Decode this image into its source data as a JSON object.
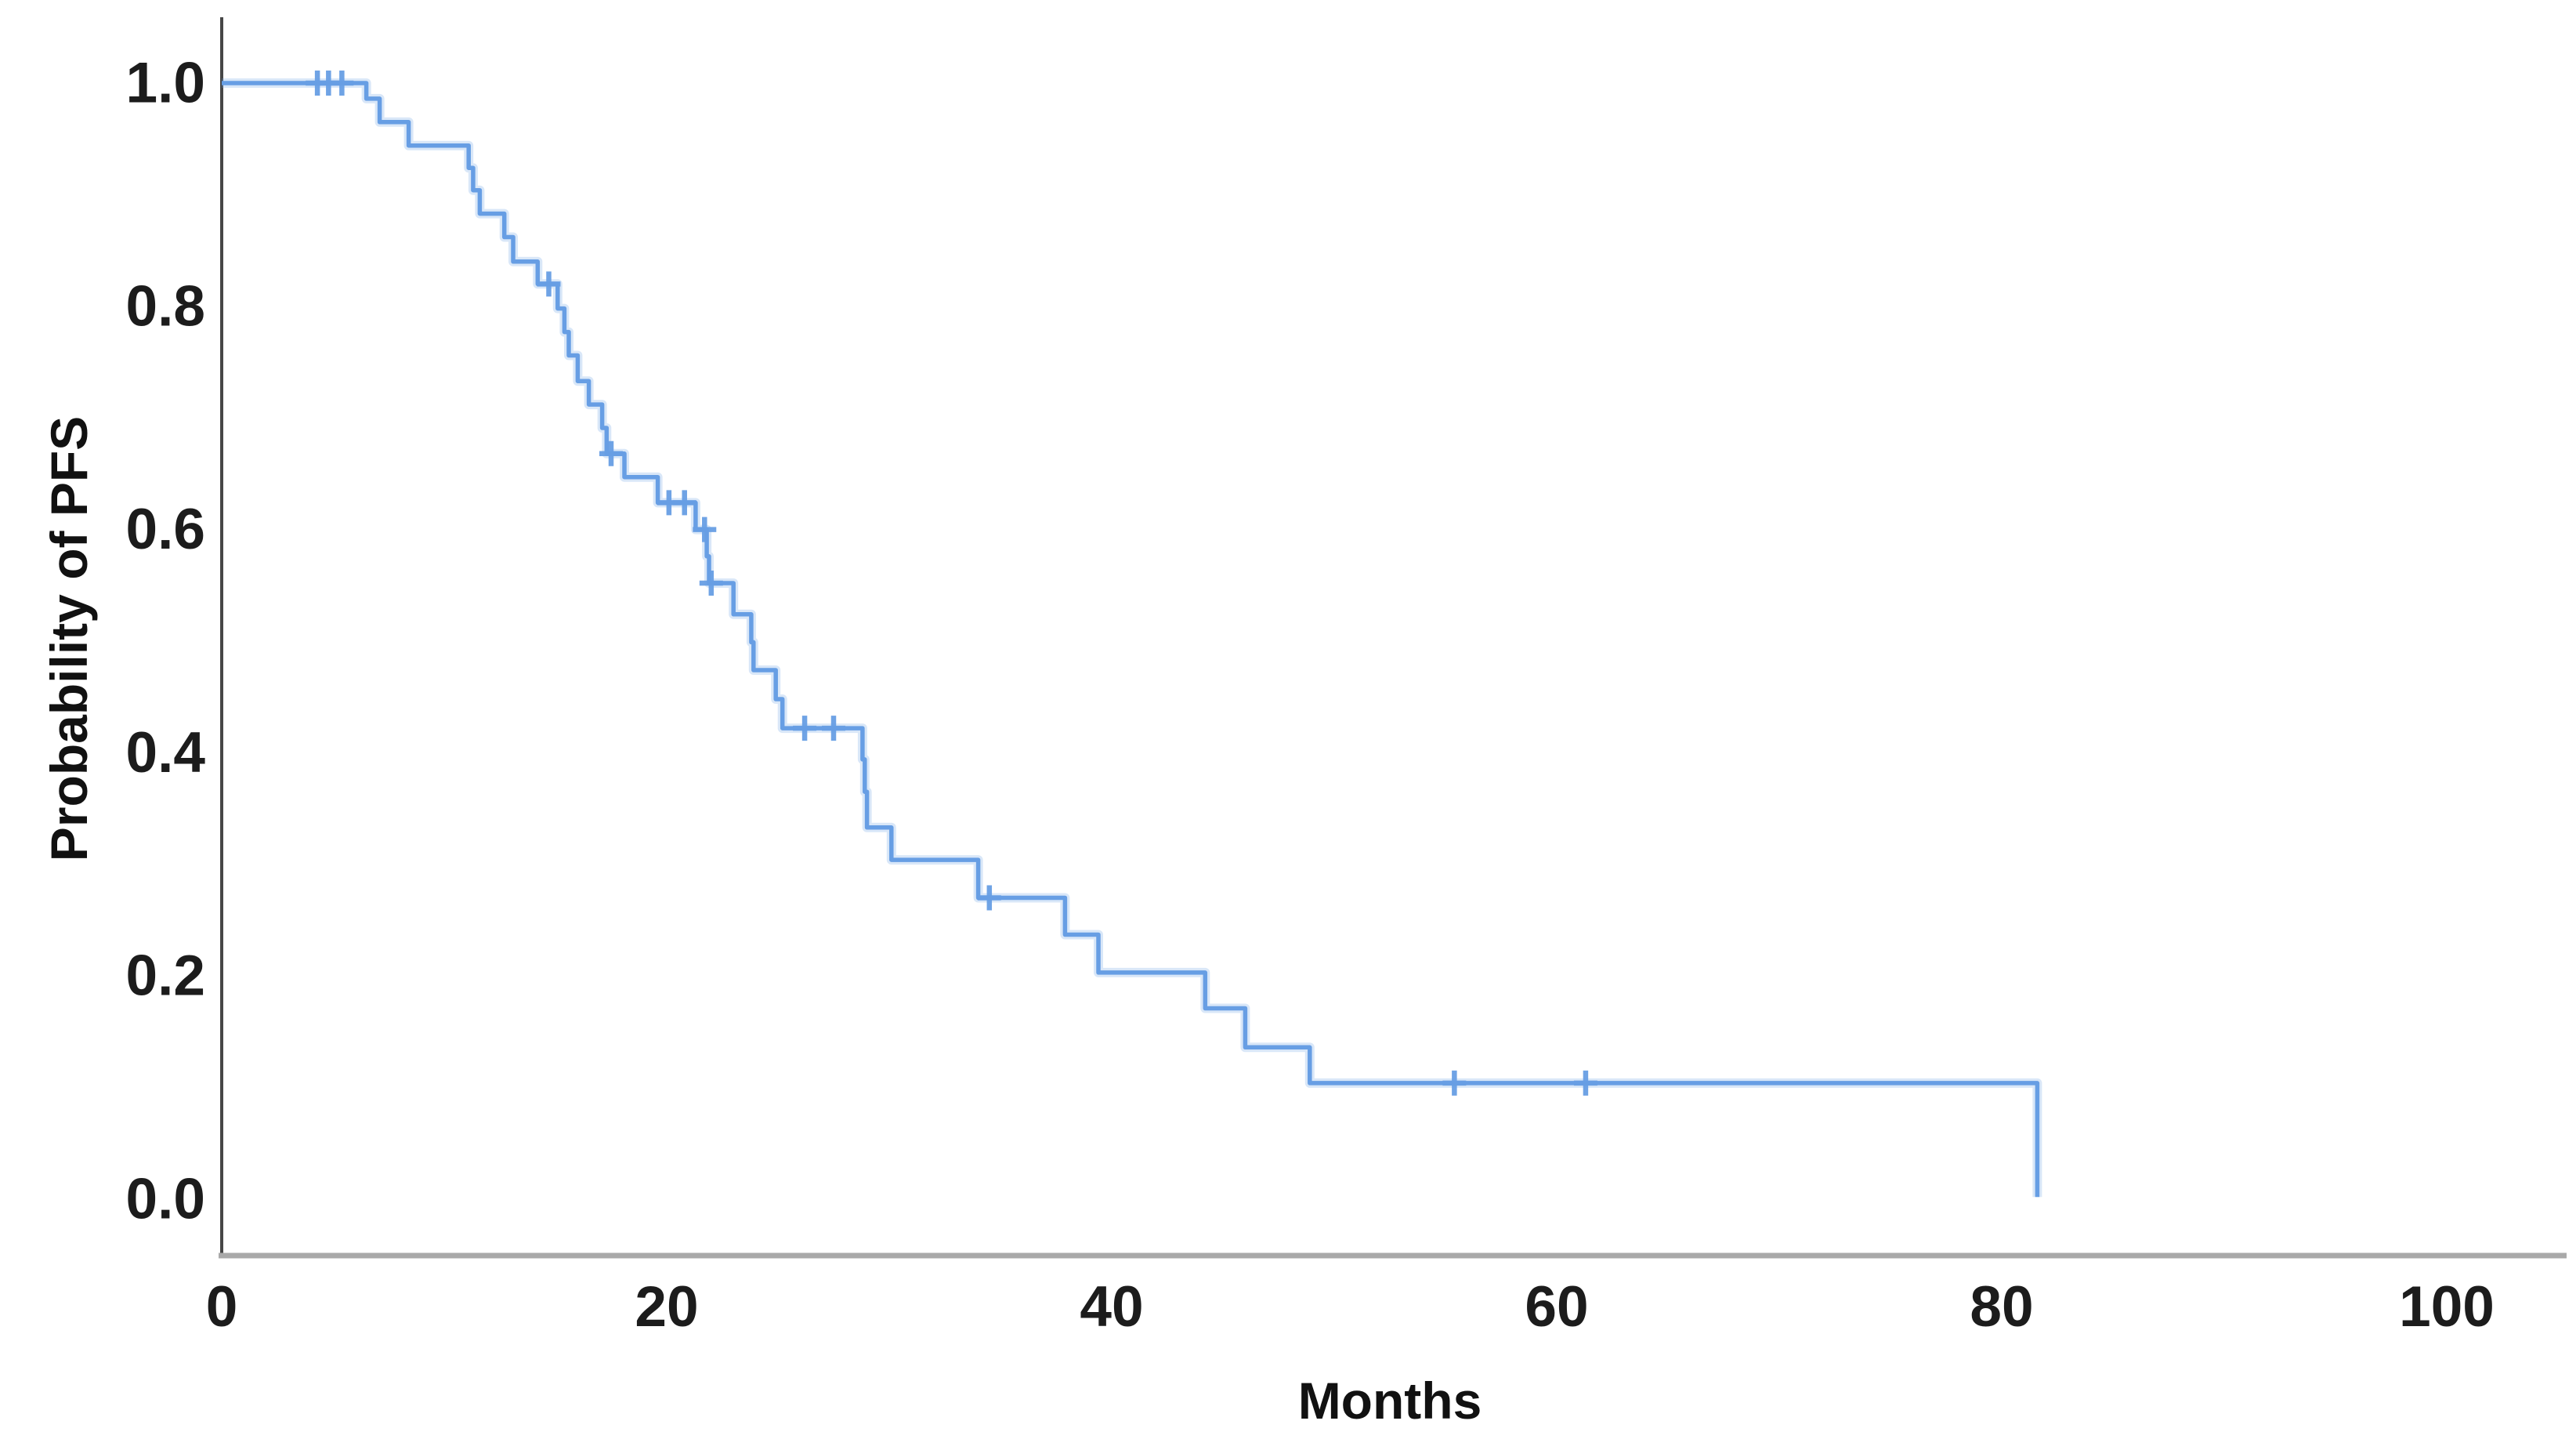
{
  "figure": {
    "background": "#ffffff",
    "x_axis": {
      "label": "Months",
      "tick_labels": [
        "0",
        "20",
        "40",
        "60",
        "80",
        "100"
      ],
      "tick_values": [
        0,
        20,
        40,
        60,
        80,
        100
      ],
      "axis_color": "#a9a9a9"
    },
    "y_axis": {
      "label": "Probability of PFS",
      "tick_labels": [
        "1.0",
        "0.8",
        "0.6",
        "0.4",
        "0.2",
        "0.0"
      ],
      "tick_values": [
        1.0,
        0.8,
        0.6,
        0.4,
        0.2,
        0.0
      ],
      "axis_color": "#474747"
    },
    "text_color": "#1c1c1c"
  },
  "chart_data": {
    "type": "line",
    "subtype": "kaplan-meier-step",
    "title": "",
    "xlabel": "Months",
    "ylabel": "Probability of PFS",
    "xlim": [
      0,
      105
    ],
    "ylim": [
      0.0,
      1.0
    ],
    "grid": false,
    "legend": "none",
    "series": [
      {
        "name": "PFS",
        "color": "#679ee4",
        "steps": [
          [
            0,
            1.0
          ],
          [
            6.5,
            0.986
          ],
          [
            7.1,
            0.965
          ],
          [
            8.4,
            0.944
          ],
          [
            11.1,
            0.924
          ],
          [
            11.3,
            0.904
          ],
          [
            11.6,
            0.883
          ],
          [
            12.7,
            0.862
          ],
          [
            13.1,
            0.84
          ],
          [
            14.2,
            0.82
          ],
          [
            15.1,
            0.798
          ],
          [
            15.4,
            0.777
          ],
          [
            15.6,
            0.756
          ],
          [
            16.0,
            0.733
          ],
          [
            16.5,
            0.712
          ],
          [
            17.1,
            0.691
          ],
          [
            17.3,
            0.668
          ],
          [
            18.1,
            0.647
          ],
          [
            19.6,
            0.624
          ],
          [
            21.3,
            0.6
          ],
          [
            21.8,
            0.576
          ],
          [
            21.9,
            0.552
          ],
          [
            23.0,
            0.524
          ],
          [
            23.8,
            0.499
          ],
          [
            23.9,
            0.474
          ],
          [
            24.9,
            0.448
          ],
          [
            25.2,
            0.422
          ],
          [
            28.8,
            0.394
          ],
          [
            28.9,
            0.365
          ],
          [
            29.0,
            0.333
          ],
          [
            30.1,
            0.304
          ],
          [
            34.0,
            0.27
          ],
          [
            37.9,
            0.237
          ],
          [
            39.4,
            0.203
          ],
          [
            44.2,
            0.171
          ],
          [
            46.0,
            0.136
          ],
          [
            48.9,
            0.104
          ],
          [
            81.6,
            0.002
          ]
        ],
        "censor_marks": [
          [
            4.3,
            1.0
          ],
          [
            4.8,
            1.0
          ],
          [
            5.4,
            1.0
          ],
          [
            14.7,
            0.82
          ],
          [
            17.5,
            0.668
          ],
          [
            20.1,
            0.624
          ],
          [
            20.8,
            0.624
          ],
          [
            21.7,
            0.6
          ],
          [
            22.0,
            0.552
          ],
          [
            26.2,
            0.422
          ],
          [
            27.5,
            0.422
          ],
          [
            34.5,
            0.27
          ],
          [
            55.4,
            0.104
          ],
          [
            61.3,
            0.104
          ]
        ]
      }
    ]
  }
}
